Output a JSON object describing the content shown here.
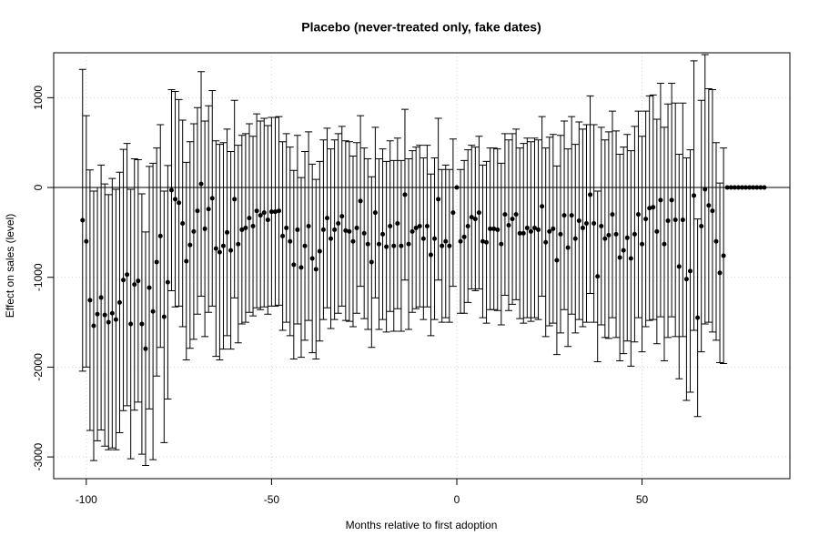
{
  "chart_data": {
    "type": "errorbar",
    "title": "Placebo (never-treated only, fake dates)",
    "x_label": "Months relative to first adoption",
    "y_label": "Effect on sales (level)",
    "xlim": [
      -108.8,
      89.9
    ],
    "ylim": [
      -3242,
      1500
    ],
    "xticks": [
      -100,
      -50,
      0,
      50
    ],
    "yticks": [
      -3000,
      -2000,
      -1000,
      0,
      1000
    ],
    "grid": true,
    "reference_line": 0,
    "color": "#000000",
    "x": [
      -101,
      -100,
      -99,
      -98,
      -97,
      -96,
      -95,
      -94,
      -93,
      -92,
      -91,
      -90,
      -89,
      -88,
      -87,
      -86,
      -85,
      -84,
      -83,
      -82,
      -81,
      -80,
      -79,
      -78,
      -77,
      -76,
      -75,
      -74,
      -73,
      -72,
      -71,
      -70,
      -69,
      -68,
      -67,
      -66,
      -65,
      -64,
      -63,
      -62,
      -61,
      -60,
      -59,
      -58,
      -57,
      -56,
      -55,
      -54,
      -53,
      -52,
      -51,
      -50,
      -49,
      -48,
      -47,
      -46,
      -45,
      -44,
      -43,
      -42,
      -41,
      -40,
      -39,
      -38,
      -37,
      -36,
      -35,
      -34,
      -33,
      -32,
      -31,
      -30,
      -29,
      -28,
      -27,
      -26,
      -25,
      -24,
      -23,
      -22,
      -21,
      -20,
      -19,
      -18,
      -17,
      -16,
      -15,
      -14,
      -13,
      -12,
      -11,
      -10,
      -9,
      -8,
      -7,
      -6,
      -5,
      -4,
      -3,
      -2,
      -1,
      0,
      1,
      2,
      3,
      4,
      5,
      6,
      7,
      8,
      9,
      10,
      11,
      12,
      13,
      14,
      15,
      16,
      17,
      18,
      19,
      20,
      21,
      22,
      23,
      24,
      25,
      26,
      27,
      28,
      29,
      30,
      31,
      32,
      33,
      34,
      35,
      36,
      37,
      38,
      39,
      40,
      41,
      42,
      43,
      44,
      45,
      46,
      47,
      48,
      49,
      50,
      51,
      52,
      53,
      54,
      55,
      56,
      57,
      58,
      59,
      60,
      61,
      62,
      63,
      64,
      65,
      66,
      67,
      68,
      69,
      70,
      71,
      72,
      73,
      74,
      75,
      76,
      77,
      78,
      79,
      80,
      81,
      82,
      83
    ],
    "values": [
      -365,
      -600,
      -1255,
      -1540,
      -1410,
      -1225,
      -1420,
      -1500,
      -1400,
      -1470,
      -1280,
      -1030,
      -970,
      -1520,
      -1080,
      -1040,
      -1520,
      -1795,
      -1115,
      -1380,
      -830,
      -540,
      -1440,
      -1055,
      -30,
      -130,
      -170,
      -400,
      -820,
      -640,
      -490,
      -260,
      40,
      -460,
      -240,
      -120,
      -680,
      -720,
      -650,
      -500,
      -700,
      -130,
      -630,
      -470,
      -450,
      -340,
      -430,
      -260,
      -310,
      -280,
      -360,
      -270,
      -270,
      -260,
      -540,
      -450,
      -600,
      -860,
      -470,
      -890,
      -650,
      -430,
      -790,
      -910,
      -710,
      -470,
      -340,
      -570,
      -470,
      -400,
      -320,
      -480,
      -490,
      -600,
      -450,
      -150,
      -510,
      -630,
      -830,
      -280,
      -630,
      -520,
      -660,
      -430,
      -650,
      -400,
      -650,
      -80,
      -630,
      -490,
      -450,
      -430,
      -570,
      -430,
      -750,
      -570,
      -130,
      -650,
      -600,
      -650,
      -280,
      0,
      -600,
      -550,
      -430,
      -330,
      -350,
      -280,
      -600,
      -610,
      -460,
      -460,
      -470,
      -630,
      -300,
      -420,
      -350,
      -300,
      -510,
      -510,
      -450,
      -490,
      -450,
      -470,
      -210,
      -610,
      -490,
      -460,
      -810,
      -520,
      -310,
      -670,
      -310,
      -570,
      -370,
      -450,
      -400,
      -80,
      -400,
      -990,
      -430,
      -570,
      -530,
      -300,
      -520,
      -780,
      -700,
      -560,
      -790,
      -520,
      -300,
      -630,
      -350,
      -230,
      -220,
      -490,
      -140,
      -630,
      -370,
      -140,
      -360,
      -880,
      -360,
      -1020,
      -930,
      -90,
      -1450,
      -430,
      -20,
      -200,
      -260,
      -600,
      -950,
      -760,
      0,
      0,
      0,
      0,
      0,
      0,
      0,
      0,
      0,
      0,
      0
    ],
    "errors": [
      1680,
      1400,
      1450,
      1500,
      1410,
      1475,
      1460,
      1420,
      1500,
      1450,
      1450,
      1455,
      1460,
      1500,
      1400,
      1350,
      1450,
      1300,
      1350,
      1650,
      1270,
      1240,
      1400,
      1300,
      1120,
      1200,
      1150,
      1150,
      1100,
      1150,
      1200,
      1150,
      1250,
      1200,
      1150,
      1200,
      1200,
      1200,
      1150,
      1150,
      1100,
      1100,
      1100,
      1050,
      1050,
      1050,
      1000,
      1080,
      1050,
      1050,
      1050,
      1050,
      1050,
      1050,
      1050,
      1050,
      1050,
      1050,
      1050,
      1000,
      1050,
      1050,
      1050,
      1000,
      1000,
      1000,
      1000,
      1000,
      1000,
      1000,
      1000,
      1000,
      1000,
      950,
      950,
      950,
      950,
      950,
      950,
      950,
      950,
      950,
      950,
      950,
      950,
      950,
      950,
      950,
      950,
      900,
      900,
      900,
      900,
      900,
      900,
      900,
      900,
      850,
      850,
      850,
      820,
      0,
      800,
      850,
      850,
      800,
      800,
      850,
      850,
      900,
      900,
      900,
      900,
      900,
      900,
      950,
      950,
      950,
      950,
      1000,
      1000,
      1000,
      1000,
      1000,
      1000,
      1050,
      1050,
      1050,
      1050,
      1100,
      1050,
      1100,
      1100,
      1050,
      1100,
      1100,
      1100,
      1100,
      1100,
      950,
      1100,
      1100,
      1150,
      1150,
      1150,
      1150,
      1150,
      1150,
      1200,
      1200,
      1150,
      1200,
      1200,
      1250,
      1250,
      1250,
      1300,
      1300,
      1300,
      1300,
      1300,
      1250,
      1300,
      1350,
      1350,
      1500,
      1100,
      1400,
      1500,
      1300,
      1350,
      1100,
      1000,
      1200,
      0,
      0,
      0,
      0,
      0,
      0,
      0,
      0,
      0,
      0,
      0
    ]
  }
}
